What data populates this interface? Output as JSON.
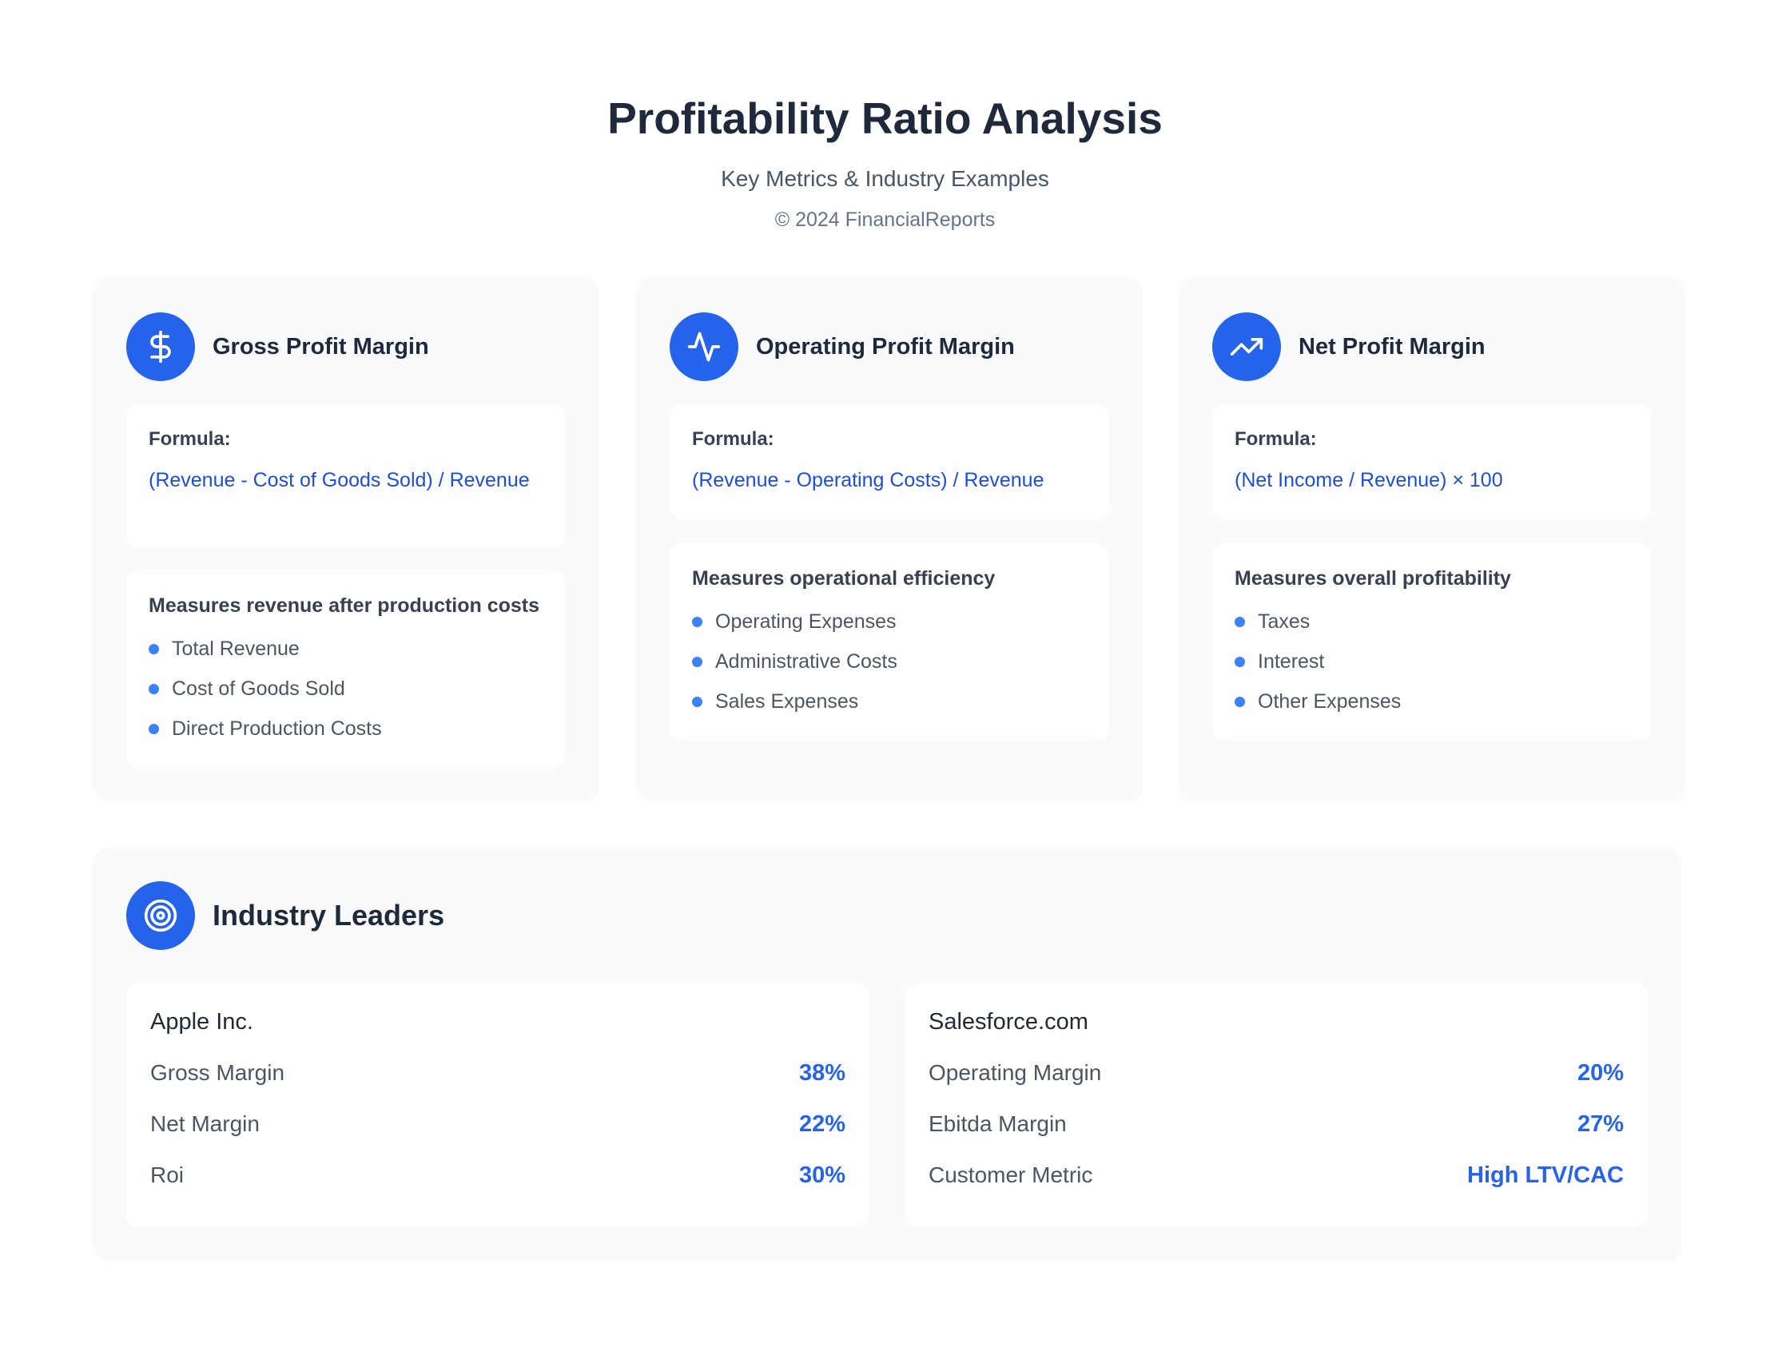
{
  "header": {
    "title": "Profitability Ratio Analysis",
    "subtitle": "Key Metrics & Industry Examples",
    "copyright": "© 2024 FinancialReports"
  },
  "cards": [
    {
      "icon": "dollar-icon",
      "title": "Gross Profit Margin",
      "formula_label": "Formula:",
      "formula": "(Revenue - Cost of Goods Sold) / Revenue",
      "description": "Measures revenue after production costs",
      "items": [
        "Total Revenue",
        "Cost of Goods Sold",
        "Direct Production Costs"
      ]
    },
    {
      "icon": "activity-icon",
      "title": "Operating Profit Margin",
      "formula_label": "Formula:",
      "formula": "(Revenue - Operating Costs) / Revenue",
      "description": "Measures operational efficiency",
      "items": [
        "Operating Expenses",
        "Administrative Costs",
        "Sales Expenses"
      ]
    },
    {
      "icon": "trending-up-icon",
      "title": "Net Profit Margin",
      "formula_label": "Formula:",
      "formula": "(Net Income / Revenue) × 100",
      "description": "Measures overall profitability",
      "items": [
        "Taxes",
        "Interest",
        "Other Expenses"
      ]
    }
  ],
  "leaders": {
    "icon": "target-icon",
    "title": "Industry Leaders",
    "companies": [
      {
        "name": "Apple Inc.",
        "metrics": [
          {
            "label": "Gross Margin",
            "value": "38%"
          },
          {
            "label": "Net Margin",
            "value": "22%"
          },
          {
            "label": "Roi",
            "value": "30%"
          }
        ]
      },
      {
        "name": "Salesforce.com",
        "metrics": [
          {
            "label": "Operating Margin",
            "value": "20%"
          },
          {
            "label": "Ebitda Margin",
            "value": "27%"
          },
          {
            "label": "Customer Metric",
            "value": "High LTV/CAC"
          }
        ]
      }
    ]
  },
  "colors": {
    "accent": "#2563eb",
    "formula_text": "#1d4ed8",
    "card_bg": "#f8fafc",
    "bullet": "#3b82f6"
  }
}
